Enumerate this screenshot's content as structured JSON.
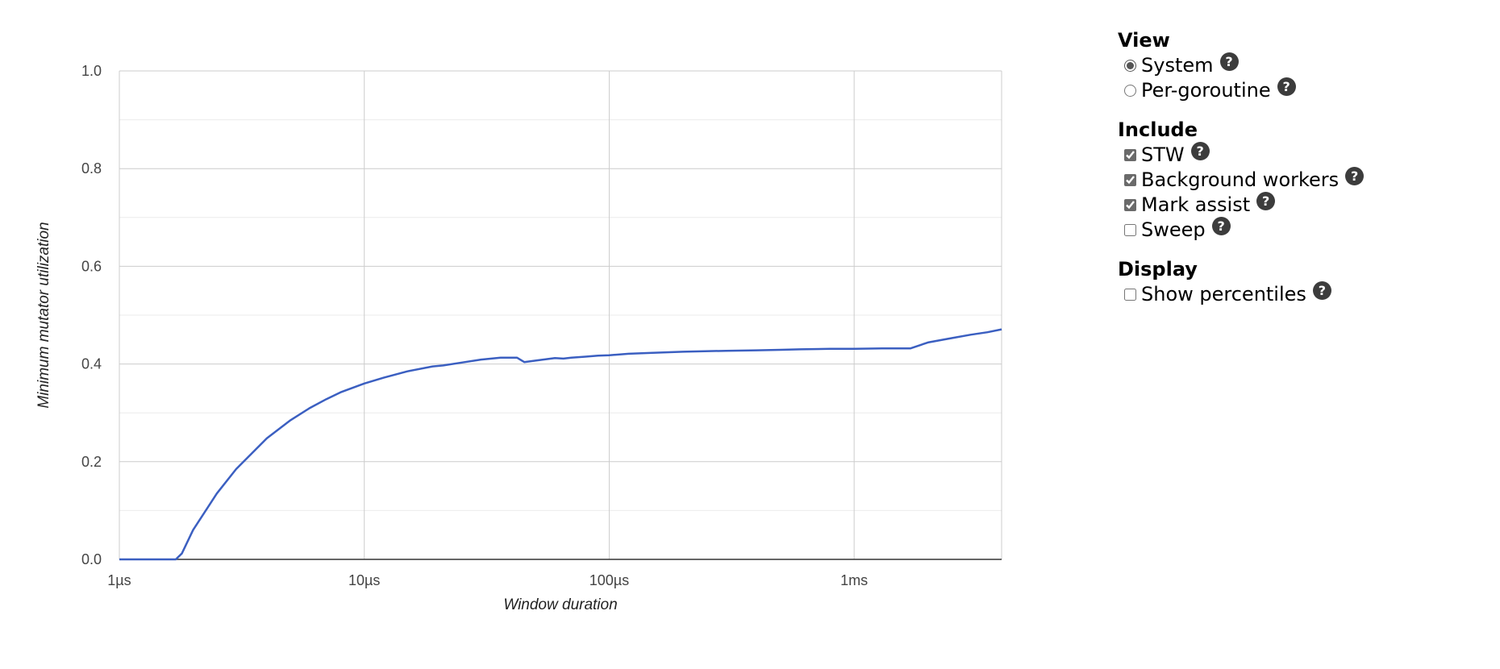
{
  "chart_data": {
    "type": "line",
    "xlabel": "Window duration",
    "ylabel": "Minimum mutator utilization",
    "x_scale": "log",
    "x_ticks": [
      1,
      10,
      100,
      1000
    ],
    "x_tick_labels": [
      "1µs",
      "10µs",
      "100µs",
      "1ms"
    ],
    "xlim": [
      1,
      4000
    ],
    "y_ticks": [
      0.0,
      0.2,
      0.4,
      0.6,
      0.8,
      1.0
    ],
    "y_tick_labels": [
      "0.0",
      "0.2",
      "0.4",
      "0.6",
      "0.8",
      "1.0"
    ],
    "ylim": [
      0,
      1
    ],
    "grid": true,
    "line_color": "#3b5fc1",
    "series": [
      {
        "x_unit": "µs",
        "x": [
          1,
          1.5,
          1.7,
          1.8,
          2,
          2.5,
          3,
          4,
          5,
          6,
          7,
          8,
          10,
          12,
          15,
          19,
          21,
          25,
          30,
          36,
          40,
          42,
          45,
          50,
          60,
          65,
          70,
          80,
          90,
          100,
          120,
          150,
          200,
          300,
          400,
          500,
          600,
          800,
          1000,
          1300,
          1700,
          2000,
          2500,
          3000,
          3500,
          4000
        ],
        "y": [
          0,
          0,
          0,
          0.012,
          0.06,
          0.135,
          0.185,
          0.248,
          0.285,
          0.31,
          0.328,
          0.342,
          0.36,
          0.372,
          0.385,
          0.395,
          0.397,
          0.403,
          0.409,
          0.413,
          0.413,
          0.413,
          0.404,
          0.407,
          0.412,
          0.411,
          0.413,
          0.415,
          0.417,
          0.418,
          0.421,
          0.423,
          0.425,
          0.427,
          0.428,
          0.429,
          0.43,
          0.431,
          0.431,
          0.432,
          0.432,
          0.444,
          0.453,
          0.46,
          0.465,
          0.471
        ]
      }
    ]
  },
  "controls": {
    "view": {
      "title": "View",
      "options": [
        {
          "label": "System",
          "checked": true
        },
        {
          "label": "Per-goroutine",
          "checked": false
        }
      ]
    },
    "include": {
      "title": "Include",
      "options": [
        {
          "label": "STW",
          "checked": true
        },
        {
          "label": "Background workers",
          "checked": true
        },
        {
          "label": "Mark assist",
          "checked": true
        },
        {
          "label": "Sweep",
          "checked": false
        }
      ]
    },
    "display": {
      "title": "Display",
      "options": [
        {
          "label": "Show percentiles",
          "checked": false
        }
      ]
    },
    "help_glyph": "?"
  }
}
